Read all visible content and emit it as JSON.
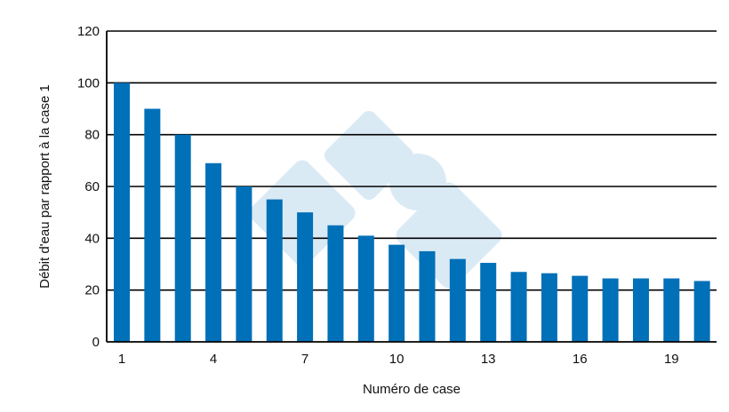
{
  "chart_data": {
    "type": "bar",
    "title": "",
    "xlabel": "Numéro de case",
    "ylabel": "Débit d'eau par rapport à la case 1",
    "categories": [
      "1",
      "2",
      "3",
      "4",
      "5",
      "6",
      "7",
      "8",
      "9",
      "10",
      "11",
      "12",
      "13",
      "14",
      "15",
      "16",
      "17",
      "18",
      "19",
      "20"
    ],
    "x_tick_labels": [
      "1",
      "4",
      "7",
      "10",
      "13",
      "16",
      "19"
    ],
    "y_tick_labels": [
      "0",
      "20",
      "40",
      "60",
      "80",
      "100",
      "120"
    ],
    "values": [
      100,
      90,
      80,
      69,
      60,
      55,
      50,
      45,
      41,
      37.5,
      35,
      32,
      30.5,
      27,
      26.5,
      25.5,
      24.5,
      24.5,
      24.5,
      23.5
    ],
    "ylim": [
      0,
      120
    ],
    "ytick_step": 20,
    "grid": "horizontal",
    "legend": "none",
    "colors": {
      "bar": "#0070b8",
      "grid": "#000000",
      "watermark": "#cfe3f2"
    }
  }
}
